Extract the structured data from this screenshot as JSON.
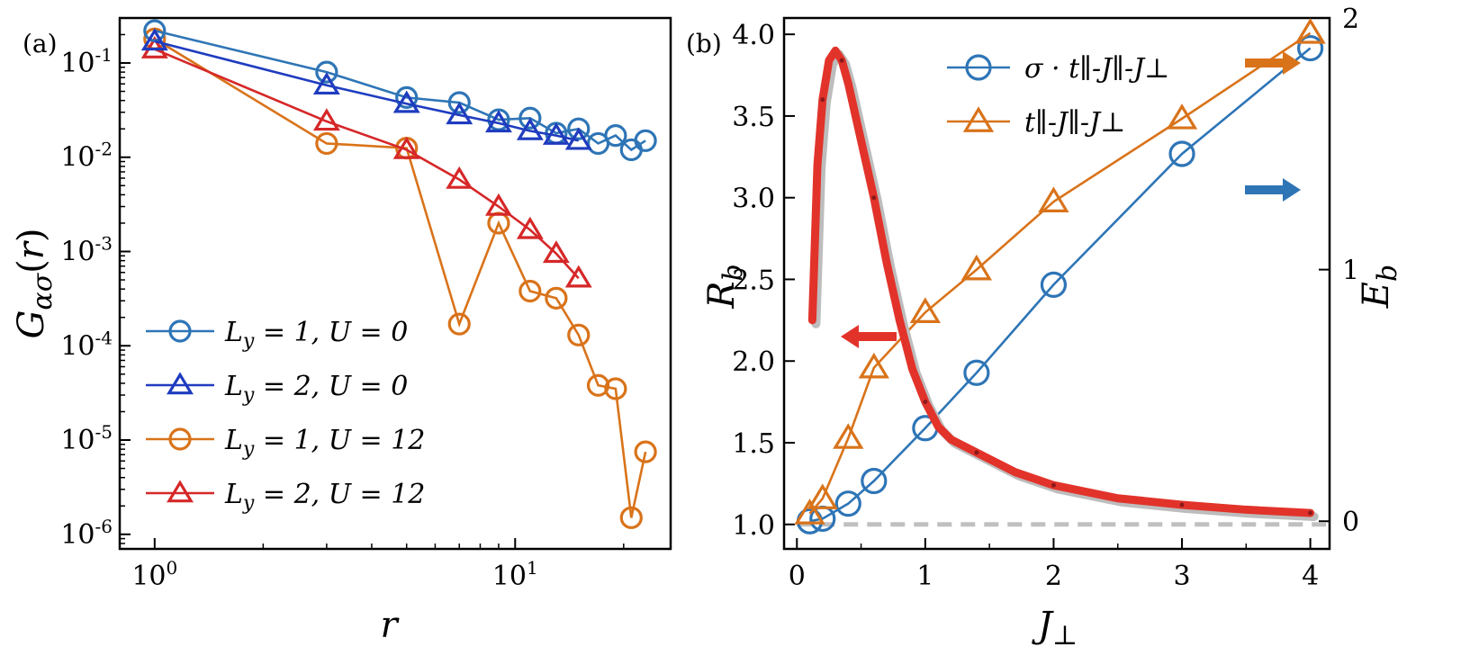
{
  "chart_data": [
    {
      "panel": "(a)",
      "type": "line",
      "xscale": "log",
      "yscale": "log",
      "xlim": [
        0.8,
        27
      ],
      "ylim": [
        7e-07,
        0.3
      ],
      "xlabel": "r",
      "ylabel": "Gασ(r)",
      "x_ticks": [
        {
          "value": 1,
          "base": "10",
          "exp": "0"
        },
        {
          "value": 10,
          "base": "10",
          "exp": "1"
        }
      ],
      "y_ticks": [
        {
          "value": 0.1,
          "base": "10",
          "exp": "-1"
        },
        {
          "value": 0.01,
          "base": "10",
          "exp": "-2"
        },
        {
          "value": 0.001,
          "base": "10",
          "exp": "-3"
        },
        {
          "value": 0.0001,
          "base": "10",
          "exp": "-4"
        },
        {
          "value": 1e-05,
          "base": "10",
          "exp": "-5"
        },
        {
          "value": 1e-06,
          "base": "10",
          "exp": "-6"
        }
      ],
      "legend_position": "lower-left",
      "series": [
        {
          "name": "L_y = 1, U = 0",
          "label_var": "L",
          "label_sub": "y",
          "label_rest": " = 1, U = 0",
          "color": "#2e75b6",
          "marker": "circle",
          "x": [
            1,
            3,
            5,
            7,
            9,
            11,
            13,
            15,
            17,
            19,
            21,
            23
          ],
          "y": [
            0.22,
            0.08,
            0.043,
            0.038,
            0.025,
            0.026,
            0.018,
            0.02,
            0.014,
            0.017,
            0.012,
            0.015
          ]
        },
        {
          "name": "L_y = 2, U = 0",
          "label_var": "L",
          "label_sub": "y",
          "label_rest": " = 2, U = 0",
          "color": "#1f3cbf",
          "marker": "triangle",
          "x": [
            1,
            3,
            5,
            7,
            9,
            11,
            13,
            15
          ],
          "y": [
            0.17,
            0.058,
            0.037,
            0.028,
            0.023,
            0.019,
            0.017,
            0.015
          ]
        },
        {
          "name": "L_y = 1, U = 12",
          "label_var": "L",
          "label_sub": "y",
          "label_rest": " = 1, U = 12",
          "color": "#d9731a",
          "marker": "circle",
          "x": [
            1,
            3,
            5,
            7,
            9,
            11,
            13,
            15,
            17,
            19,
            21,
            23
          ],
          "y": [
            0.18,
            0.014,
            0.0125,
            0.00017,
            0.002,
            0.00038,
            0.00032,
            0.00013,
            3.8e-05,
            3.5e-05,
            1.5e-06,
            7.5e-06
          ]
        },
        {
          "name": "L_y = 2, U = 12",
          "label_var": "L",
          "label_sub": "y",
          "label_rest": " = 2, U = 12",
          "color": "#d62728",
          "marker": "triangle",
          "x": [
            1,
            3,
            5,
            7,
            9,
            11,
            13,
            15
          ],
          "y": [
            0.14,
            0.024,
            0.012,
            0.0058,
            0.003,
            0.0017,
            0.00095,
            0.00052
          ]
        }
      ]
    },
    {
      "panel": "(b)",
      "type": "line",
      "xlim": [
        -0.1,
        4.15
      ],
      "ylim_left": [
        0.85,
        4.1
      ],
      "ylim_right": [
        -0.11,
        2.0
      ],
      "xlabel": "J⊥",
      "ylabel_left": "R_b",
      "ylabel_right": "E_b",
      "x_ticks": [
        0,
        1,
        2,
        3,
        4
      ],
      "y_ticks_left": [
        "1.0",
        "1.5",
        "2.0",
        "2.5",
        "3.0",
        "3.5",
        "4.0"
      ],
      "y_ticks_right": [
        "0",
        "1",
        "2"
      ],
      "legend_position": "top",
      "reference_line": {
        "y": 1.0,
        "style": "dashed",
        "color": "#c0c0c0"
      },
      "series": [
        {
          "name": "σ · t∥-J∥-J⊥",
          "color": "#2e75b6",
          "marker": "circle",
          "axis": "right",
          "label_text": "σ · t∥-J∥-J⊥",
          "x": [
            0.1,
            0.2,
            0.4,
            0.6,
            1.0,
            1.4,
            2.0,
            3.0,
            4.0
          ],
          "y": [
            0.0,
            0.01,
            0.07,
            0.16,
            0.37,
            0.59,
            0.94,
            1.46,
            1.88
          ]
        },
        {
          "name": "t∥-J∥-J⊥",
          "color": "#d9731a",
          "marker": "triangle",
          "axis": "right",
          "label_text": "t∥-J∥-J⊥",
          "x": [
            0.1,
            0.2,
            0.4,
            0.6,
            1.0,
            1.4,
            2.0,
            3.0,
            4.0
          ],
          "y": [
            0.03,
            0.09,
            0.33,
            0.61,
            0.83,
            1.0,
            1.27,
            1.6,
            1.94
          ]
        },
        {
          "name": "R_b (thick red curve)",
          "color": "#e2332b",
          "axis": "left",
          "x": [
            0.12,
            0.16,
            0.2,
            0.25,
            0.3,
            0.35,
            0.4,
            0.5,
            0.6,
            0.7,
            0.8,
            0.9,
            1.0,
            1.1,
            1.2,
            1.4,
            1.7,
            2.0,
            2.5,
            3.0,
            3.5,
            4.0
          ],
          "y": [
            2.25,
            3.2,
            3.6,
            3.84,
            3.9,
            3.84,
            3.7,
            3.35,
            3.0,
            2.6,
            2.25,
            1.95,
            1.75,
            1.6,
            1.52,
            1.44,
            1.32,
            1.24,
            1.16,
            1.12,
            1.09,
            1.07
          ]
        }
      ],
      "arrows": [
        {
          "side": "left",
          "color": "#e2332b",
          "direction": "left",
          "points_to": "left axis (R_b)"
        },
        {
          "side": "right",
          "color": "#d9731a",
          "direction": "right",
          "points_to": "right axis (E_b)"
        },
        {
          "side": "right",
          "color": "#2e75b6",
          "direction": "right",
          "points_to": "right axis (E_b)"
        }
      ]
    }
  ]
}
